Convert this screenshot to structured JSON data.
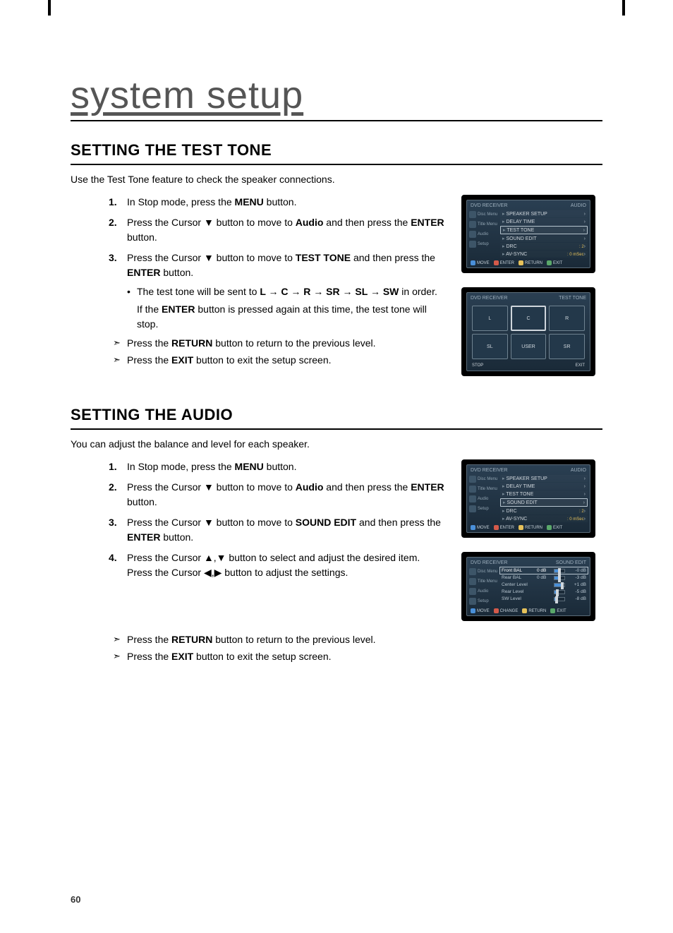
{
  "page": {
    "title": "system setup",
    "page_number": "60"
  },
  "section1": {
    "heading": "SETTING THE TEST TONE",
    "intro": "Use the Test Tone feature to check the speaker connections.",
    "step1_a": "In Stop mode, press the ",
    "step1_b": "MENU",
    "step1_c": " button.",
    "step2_a": "Press the Cursor ",
    "step2_b": " button to move to ",
    "step2_c": "Audio",
    "step2_d": " and then press the ",
    "step2_e": "ENTER",
    "step2_f": " button.",
    "step3_a": "Press the Cursor ",
    "step3_b": " button to move to ",
    "step3_c": "TEST TONE",
    "step3_d": " and then press the ",
    "step3_e": "ENTER",
    "step3_f": " button.",
    "bullet_a": "The test tone will be sent to ",
    "bullet_seq": "L → C → R → SR → SL → SW",
    "bullet_b": " in order.",
    "bullet_note_a": "If the ",
    "bullet_note_b": "ENTER",
    "bullet_note_c": " button is pressed again at this time, the test tone will stop.",
    "arrow1_a": "Press the ",
    "arrow1_b": "RETURN",
    "arrow1_c": " button to return to the previous level.",
    "arrow2_a": "Press the ",
    "arrow2_b": "EXIT",
    "arrow2_c": " button to exit the setup screen."
  },
  "section2": {
    "heading": "SETTING THE AUDIO",
    "intro": "You can adjust the balance and level for each speaker.",
    "step1_a": "In Stop mode, press the ",
    "step1_b": "MENU",
    "step1_c": " button.",
    "step2_a": "Press the Cursor ",
    "step2_b": " button to move to ",
    "step2_c": "Audio",
    "step2_d": " and then press the ",
    "step2_e": "ENTER",
    "step2_f": " button.",
    "step3_a": "Press the Cursor ",
    "step3_b": " button to move to ",
    "step3_c": "SOUND EDIT",
    "step3_d": " and then press the ",
    "step3_e": "ENTER",
    "step3_f": " button.",
    "step4_a": "Press the Cursor ",
    "step4_b": " button to select and adjust the desired item. Press the Cursor ",
    "step4_c": " button to adjust the settings.",
    "arrow1_a": "Press the ",
    "arrow1_b": "RETURN",
    "arrow1_c": " button to return to the previous level.",
    "arrow2_a": "Press the ",
    "arrow2_b": "EXIT",
    "arrow2_c": " button to exit the setup screen."
  },
  "glyphs": {
    "down": "▼",
    "up": "▲",
    "left": "◀",
    "right": "▶",
    "updown": "▲,▼",
    "leftright": "◀,▶"
  },
  "osd_audio1": {
    "left_label": "DVD RECEIVER",
    "right_label": "AUDIO",
    "side": [
      "Disc Menu",
      "Title Menu",
      "Audio",
      "Setup"
    ],
    "rows": [
      {
        "label": "SPEAKER SETUP",
        "val": "",
        "hl": false
      },
      {
        "label": "DELAY TIME",
        "val": "",
        "hl": false
      },
      {
        "label": "TEST TONE",
        "val": "",
        "hl": true
      },
      {
        "label": "SOUND EDIT",
        "val": "",
        "hl": false
      },
      {
        "label": "DRC",
        "val": ": 2",
        "hl": false
      },
      {
        "label": "AV-SYNC",
        "val": ": 0 mSec",
        "hl": false
      }
    ],
    "footer": [
      "MOVE",
      "ENTER",
      "RETURN",
      "EXIT"
    ]
  },
  "osd_testtone": {
    "left_label": "DVD RECEIVER",
    "right_label": "TEST TONE",
    "speakers": [
      "L",
      "C",
      "R",
      "SL",
      "USER",
      "SR"
    ],
    "highlight_index": 1,
    "footer_left": "STOP",
    "footer_right": "EXIT"
  },
  "osd_audio2": {
    "left_label": "DVD RECEIVER",
    "right_label": "AUDIO",
    "side": [
      "Disc Menu",
      "Title Menu",
      "Audio",
      "Setup"
    ],
    "rows": [
      {
        "label": "SPEAKER SETUP",
        "val": "",
        "hl": false
      },
      {
        "label": "DELAY TIME",
        "val": "",
        "hl": false
      },
      {
        "label": "TEST TONE",
        "val": "",
        "hl": false
      },
      {
        "label": "SOUND EDIT",
        "val": "",
        "hl": true
      },
      {
        "label": "DRC",
        "val": ": 2",
        "hl": false
      },
      {
        "label": "AV-SYNC",
        "val": ": 0 mSec",
        "hl": false
      }
    ],
    "footer": [
      "MOVE",
      "ENTER",
      "RETURN",
      "EXIT"
    ]
  },
  "osd_soundedit": {
    "left_label": "DVD RECEIVER",
    "right_label": "SOUND EDIT",
    "side": [
      "Disc Menu",
      "Title Menu",
      "Audio",
      "Setup"
    ],
    "rows": [
      {
        "label": "Front BAL",
        "lv": "0 dB",
        "fill": 50,
        "out": "-0 dB",
        "hl": true
      },
      {
        "label": "Rear BAL",
        "lv": "0 dB",
        "fill": 50,
        "out": "-3 dB",
        "hl": false
      },
      {
        "label": "Center Level",
        "lv": "",
        "fill": 80,
        "out": "+1 dB",
        "hl": false
      },
      {
        "label": "Rear Level",
        "lv": "",
        "fill": 25,
        "out": "-5 dB",
        "hl": false
      },
      {
        "label": "SW Level",
        "lv": "",
        "fill": 20,
        "out": "-8 dB",
        "hl": false
      }
    ],
    "footer": [
      "MOVE",
      "CHANGE",
      "RETURN",
      "EXIT"
    ]
  },
  "colors": {
    "osd_bg_top": "#2a3f52",
    "osd_bg_bot": "#1a2a38",
    "osd_border": "#5a6b78",
    "osd_text": "#cfd6dc",
    "accent_yellow": "#e6c15a",
    "icon_blue": "#4a90d9",
    "icon_red": "#d45a4a",
    "icon_green": "#5aa86a"
  }
}
